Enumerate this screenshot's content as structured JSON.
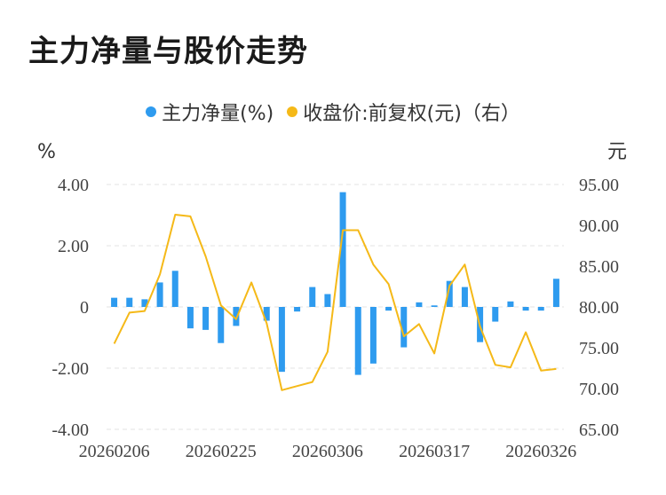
{
  "title": "主力净量与股价走势",
  "legend": {
    "bar_label": "主力净量(%)",
    "line_label": "收盘价:前复权(元)（右）"
  },
  "colors": {
    "bar": "#2E9BEF",
    "line": "#F5B918",
    "grid": "#e3e3e3"
  },
  "chart_data": {
    "type": "bar+line",
    "title": "主力净量与股价走势",
    "left_axis": {
      "unit": "%",
      "ylim": [
        -4,
        4
      ],
      "ticks": [
        "4.00",
        "2.00",
        "0",
        "-2.00",
        "-4.00"
      ]
    },
    "right_axis": {
      "unit": "元",
      "ylim": [
        65,
        95
      ],
      "ticks": [
        "95.00",
        "90.00",
        "85.00",
        "80.00",
        "75.00",
        "70.00",
        "65.00"
      ]
    },
    "x_tick_labels": [
      "20260206",
      "20260225",
      "20260306",
      "20260317",
      "20260326"
    ],
    "x_tick_indices": [
      0,
      7,
      14,
      21,
      28
    ],
    "grid": true,
    "legend_position": "top-center",
    "series": [
      {
        "name": "主力净量(%)",
        "kind": "bar",
        "axis": "left",
        "values": [
          0.3,
          0.3,
          0.25,
          0.8,
          1.18,
          -0.7,
          -0.75,
          -1.18,
          -0.62,
          0,
          -0.45,
          -2.12,
          -0.15,
          0.65,
          0.42,
          3.75,
          -2.22,
          -1.85,
          -0.12,
          -1.32,
          0.15,
          0.05,
          0.85,
          0.65,
          -1.15,
          -0.48,
          0.18,
          -0.12,
          -0.12,
          0.92
        ]
      },
      {
        "name": "收盘价:前复权(元)（右）",
        "kind": "line",
        "axis": "right",
        "values": [
          75.5,
          79.3,
          79.5,
          84.0,
          91.3,
          91.1,
          86.2,
          80.2,
          78.5,
          83.0,
          78.0,
          69.8,
          70.3,
          70.8,
          74.5,
          89.4,
          89.4,
          85.2,
          82.8,
          76.4,
          77.9,
          74.3,
          82.6,
          85.2,
          77.6,
          72.9,
          72.6,
          76.9,
          72.2,
          72.4
        ]
      }
    ]
  }
}
